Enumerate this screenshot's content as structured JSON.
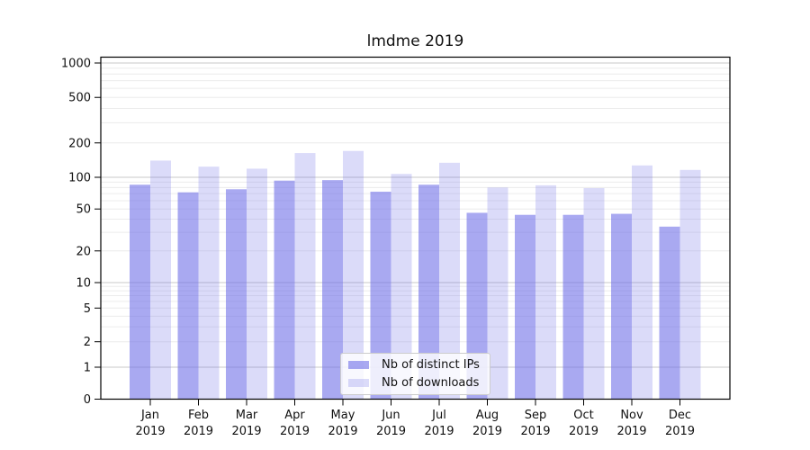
{
  "title": "lmdme 2019",
  "colors": {
    "bar_base": "#7070e8",
    "series_ips_fill": "rgba(112,112,232,0.6)",
    "series_downloads_fill": "rgba(112,112,232,0.25)",
    "grid_major": "#c9c9c9",
    "grid_minor": "#ececec",
    "axis": "#000000",
    "text": "#111111",
    "legend_border": "#cccccc",
    "legend_background": "rgba(255,255,255,0.8)"
  },
  "chart_data": {
    "type": "bar",
    "title": "lmdme 2019",
    "categories": [
      "Jan",
      "Feb",
      "Mar",
      "Apr",
      "May",
      "Jun",
      "Jul",
      "Aug",
      "Sep",
      "Oct",
      "Nov",
      "Dec"
    ],
    "category_year": "2019",
    "series": [
      {
        "name": "Nb of distinct IPs",
        "fill": "rgba(112,112,232,0.6)",
        "values": [
          85,
          72,
          77,
          93,
          94,
          73,
          85,
          46,
          44,
          44,
          45,
          34
        ]
      },
      {
        "name": "Nb of downloads",
        "fill": "rgba(112,112,232,0.25)",
        "values": [
          140,
          124,
          119,
          163,
          170,
          107,
          134,
          80,
          84,
          79,
          127,
          116
        ]
      }
    ],
    "yscale": "log-with-zero",
    "ylim": [
      0,
      1000
    ],
    "yticks": [
      0,
      1,
      2,
      5,
      10,
      20,
      50,
      100,
      200,
      500,
      1000
    ],
    "grid": true,
    "legend_position": "lower-center"
  }
}
